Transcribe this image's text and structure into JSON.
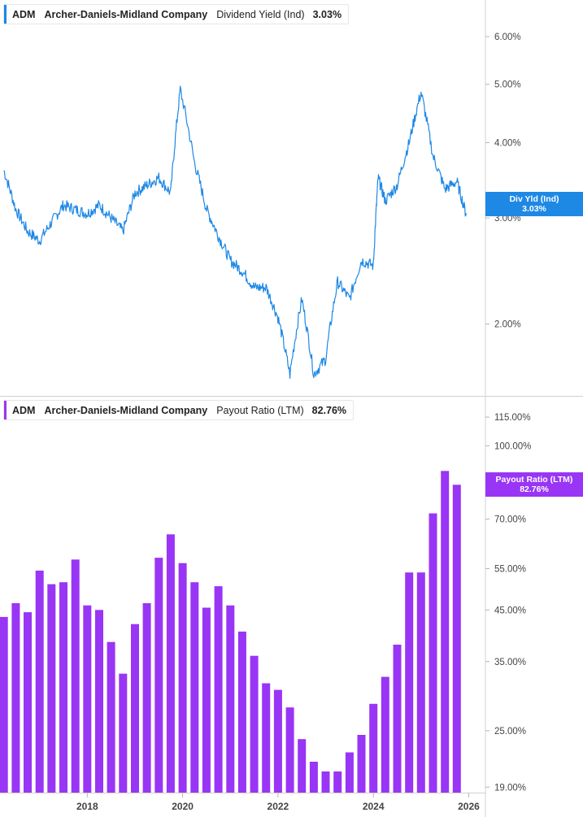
{
  "chart_data": [
    {
      "type": "line",
      "ticker": "ADM",
      "company": "Archer-Daniels-Midland Company",
      "metric": "Dividend Yield (Ind)",
      "current_value": "3.03%",
      "tag_label": "Div Yld (Ind)",
      "tag_value": "3.03%",
      "color": "#1e88e5",
      "y_scale": "log",
      "ylim": [
        1.52,
        6.9
      ],
      "y_ticks": [
        {
          "value": 6.0,
          "label": "6.00%"
        },
        {
          "value": 5.0,
          "label": "5.00%"
        },
        {
          "value": 4.0,
          "label": "4.00%"
        },
        {
          "value": 3.0,
          "label": "3.00%"
        },
        {
          "value": 2.0,
          "label": "2.00%"
        }
      ],
      "x": [
        2016.25,
        2016.5,
        2016.75,
        2017.0,
        2017.25,
        2017.5,
        2017.75,
        2018.0,
        2018.25,
        2018.5,
        2018.75,
        2019.0,
        2019.25,
        2019.5,
        2019.75,
        2019.95,
        2020.25,
        2020.5,
        2020.75,
        2021.0,
        2021.25,
        2021.5,
        2021.75,
        2022.0,
        2022.25,
        2022.5,
        2022.75,
        2023.0,
        2023.25,
        2023.5,
        2023.75,
        2024.0,
        2024.1,
        2024.25,
        2024.5,
        2024.75,
        2025.0,
        2025.25,
        2025.5,
        2025.75,
        2025.95
      ],
      "values": [
        3.6,
        3.1,
        2.85,
        2.75,
        2.95,
        3.15,
        3.1,
        3.05,
        3.15,
        3.0,
        2.85,
        3.3,
        3.4,
        3.5,
        3.3,
        4.9,
        3.7,
        3.1,
        2.8,
        2.55,
        2.45,
        2.3,
        2.3,
        2.05,
        1.65,
        2.2,
        1.65,
        1.75,
        2.35,
        2.2,
        2.55,
        2.5,
        3.5,
        3.2,
        3.4,
        4.0,
        4.85,
        3.8,
        3.35,
        3.45,
        3.03
      ]
    },
    {
      "type": "bar",
      "ticker": "ADM",
      "company": "Archer-Daniels-Midland Company",
      "metric": "Payout Ratio (LTM)",
      "current_value": "82.76%",
      "tag_label": "Payout Ratio (LTM)",
      "tag_value": "82.76%",
      "color": "#9935f5",
      "y_scale": "log",
      "ylim": [
        18.5,
        125
      ],
      "y_ticks": [
        {
          "value": 115,
          "label": "115.00%"
        },
        {
          "value": 100,
          "label": "100.00%"
        },
        {
          "value": 70,
          "label": "70.00%"
        },
        {
          "value": 55,
          "label": "55.00%"
        },
        {
          "value": 45,
          "label": "45.00%"
        },
        {
          "value": 35,
          "label": "35.00%"
        },
        {
          "value": 25,
          "label": "25.00%"
        },
        {
          "value": 19,
          "label": "19.00%"
        }
      ],
      "x": [
        2016.25,
        2016.5,
        2016.75,
        2017.0,
        2017.25,
        2017.5,
        2017.75,
        2018.0,
        2018.25,
        2018.5,
        2018.75,
        2019.0,
        2019.25,
        2019.5,
        2019.75,
        2020.0,
        2020.25,
        2020.5,
        2020.75,
        2021.0,
        2021.25,
        2021.5,
        2021.75,
        2022.0,
        2022.25,
        2022.5,
        2022.75,
        2023.0,
        2023.25,
        2023.5,
        2023.75,
        2024.0,
        2024.25,
        2024.5,
        2024.75,
        2025.0,
        2025.25,
        2025.5,
        2025.75
      ],
      "values": [
        43.5,
        46.5,
        44.5,
        54.5,
        51.0,
        51.5,
        57.5,
        46.0,
        45.0,
        38.5,
        33.0,
        42.0,
        46.5,
        58.0,
        65.0,
        56.5,
        51.5,
        45.5,
        50.5,
        46.0,
        40.5,
        36.0,
        31.5,
        30.5,
        28.0,
        24.0,
        21.5,
        20.5,
        20.5,
        22.5,
        24.5,
        28.5,
        32.5,
        38.0,
        54.0,
        54.0,
        72.0,
        88.5,
        82.76
      ]
    }
  ],
  "x_axis": {
    "ticks": [
      {
        "value": 2018,
        "label": "2018"
      },
      {
        "value": 2020,
        "label": "2020"
      },
      {
        "value": 2022,
        "label": "2022"
      },
      {
        "value": 2024,
        "label": "2024"
      },
      {
        "value": 2026,
        "label": "2026"
      }
    ]
  },
  "colors": {
    "grid": "#ececec",
    "axis": "#d0d0d0",
    "text": "#444444"
  }
}
